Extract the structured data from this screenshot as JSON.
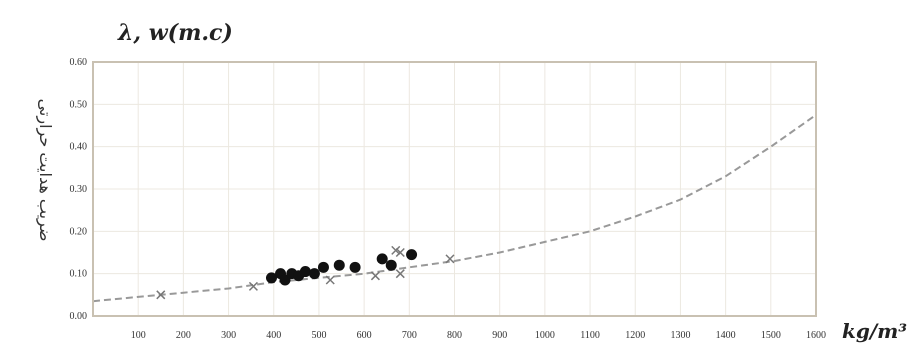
{
  "chart_data": {
    "type": "scatter",
    "title": "λ, w(m.c)",
    "ylabel": "ضریب هدایت حرارتی",
    "xunit": "kg/m³",
    "xlim": [
      0,
      1600
    ],
    "ylim": [
      0,
      0.6
    ],
    "x_ticks": [
      "100",
      "200",
      "300",
      "400",
      "500",
      "600",
      "700",
      "800",
      "900",
      "1000",
      "1100",
      "1200",
      "1300",
      "1400",
      "1500",
      "1600"
    ],
    "y_ticks": [
      "0.00",
      "0.10",
      "0.20",
      "0.30",
      "0.40",
      "0.50",
      "0.60"
    ],
    "grid": true,
    "colors": {
      "curve": "#999999",
      "dots": "#111111",
      "crosses": "#777777",
      "frame": "#c9c1b2"
    },
    "series": [
      {
        "marker": "dot",
        "x": [
          395,
          415,
          425,
          440,
          455,
          470,
          490,
          510,
          545,
          580,
          640,
          660,
          705
        ],
        "y": [
          0.09,
          0.1,
          0.085,
          0.1,
          0.095,
          0.105,
          0.1,
          0.115,
          0.12,
          0.115,
          0.135,
          0.12,
          0.145
        ]
      },
      {
        "marker": "cross",
        "x": [
          150,
          355,
          525,
          625,
          670,
          680,
          680,
          790
        ],
        "y": [
          0.05,
          0.07,
          0.085,
          0.095,
          0.155,
          0.15,
          0.1,
          0.135
        ]
      },
      {
        "marker": "curve",
        "x": [
          0,
          100,
          200,
          300,
          400,
          500,
          600,
          700,
          800,
          900,
          1000,
          1100,
          1200,
          1300,
          1400,
          1500,
          1600
        ],
        "y": [
          0.035,
          0.045,
          0.055,
          0.065,
          0.08,
          0.09,
          0.1,
          0.115,
          0.13,
          0.15,
          0.175,
          0.2,
          0.235,
          0.275,
          0.33,
          0.4,
          0.475
        ]
      }
    ]
  }
}
